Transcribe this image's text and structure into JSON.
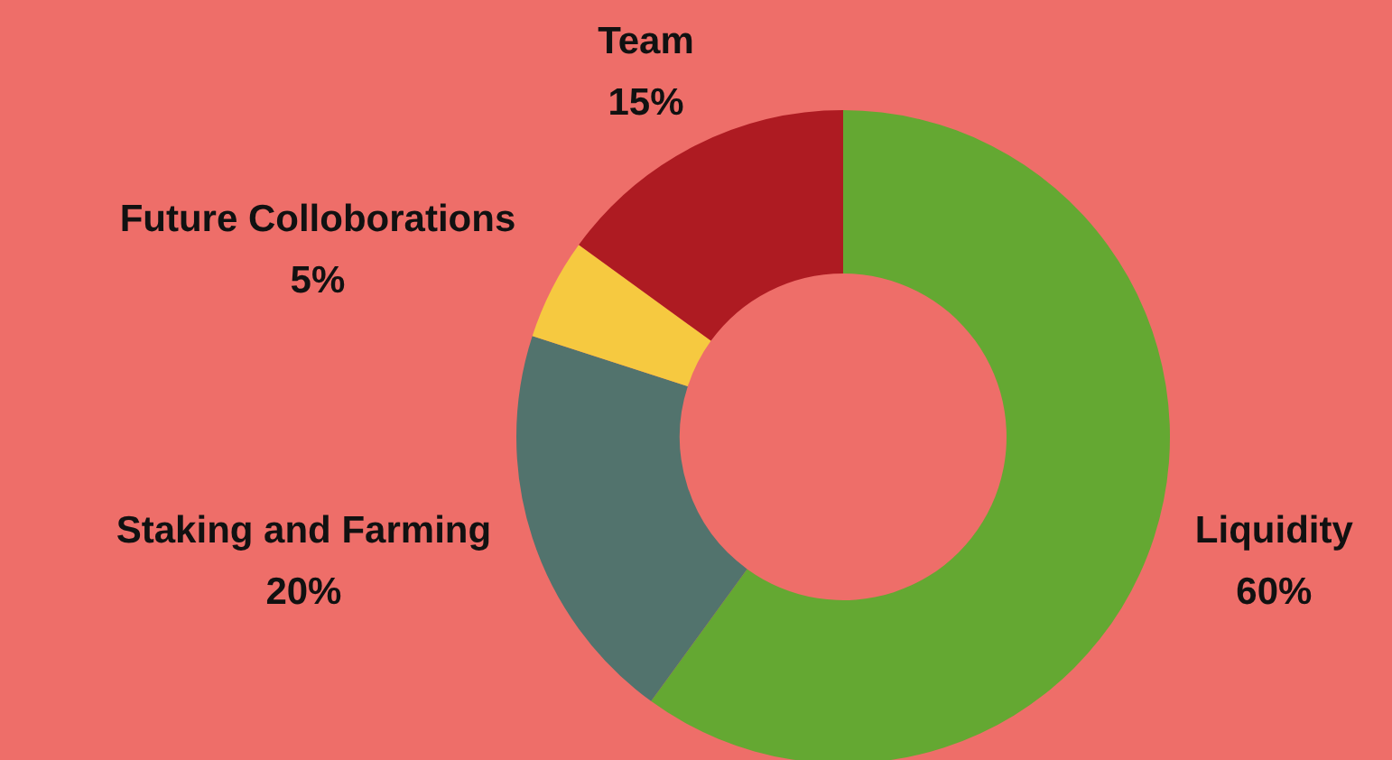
{
  "chart_data": {
    "type": "donut",
    "categories": [
      "Liquidity",
      "Staking and Farming",
      "Future Colloborations",
      "Team"
    ],
    "values": [
      60,
      20,
      5,
      15
    ],
    "colors": [
      "#64a832",
      "#52736d",
      "#f6c940",
      "#ae1b22"
    ],
    "value_labels": [
      "60%",
      "20%",
      "5%",
      "15%"
    ],
    "legend": false
  }
}
